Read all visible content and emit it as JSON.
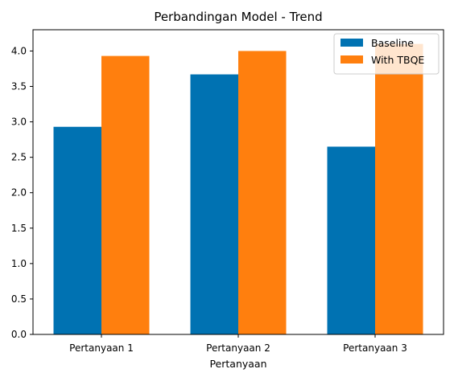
{
  "chart_data": {
    "type": "bar",
    "title": "Perbandingan Model - Trend",
    "xlabel": "Pertanyaan",
    "ylabel": "",
    "categories": [
      "Pertanyaan 1",
      "Pertanyaan 2",
      "Pertanyaan 3"
    ],
    "series": [
      {
        "name": "Baseline",
        "values": [
          2.93,
          3.67,
          2.65
        ],
        "color": "#0072b2"
      },
      {
        "name": "With TBQE",
        "values": [
          3.93,
          4.0,
          4.1
        ],
        "color": "#ff7f0e"
      }
    ],
    "ylim": [
      0,
      4.3
    ],
    "yticks": [
      "0.0",
      "0.5",
      "1.0",
      "1.5",
      "2.0",
      "2.5",
      "3.0",
      "3.5",
      "4.0"
    ],
    "grid": false,
    "legend_position": "top-right"
  }
}
